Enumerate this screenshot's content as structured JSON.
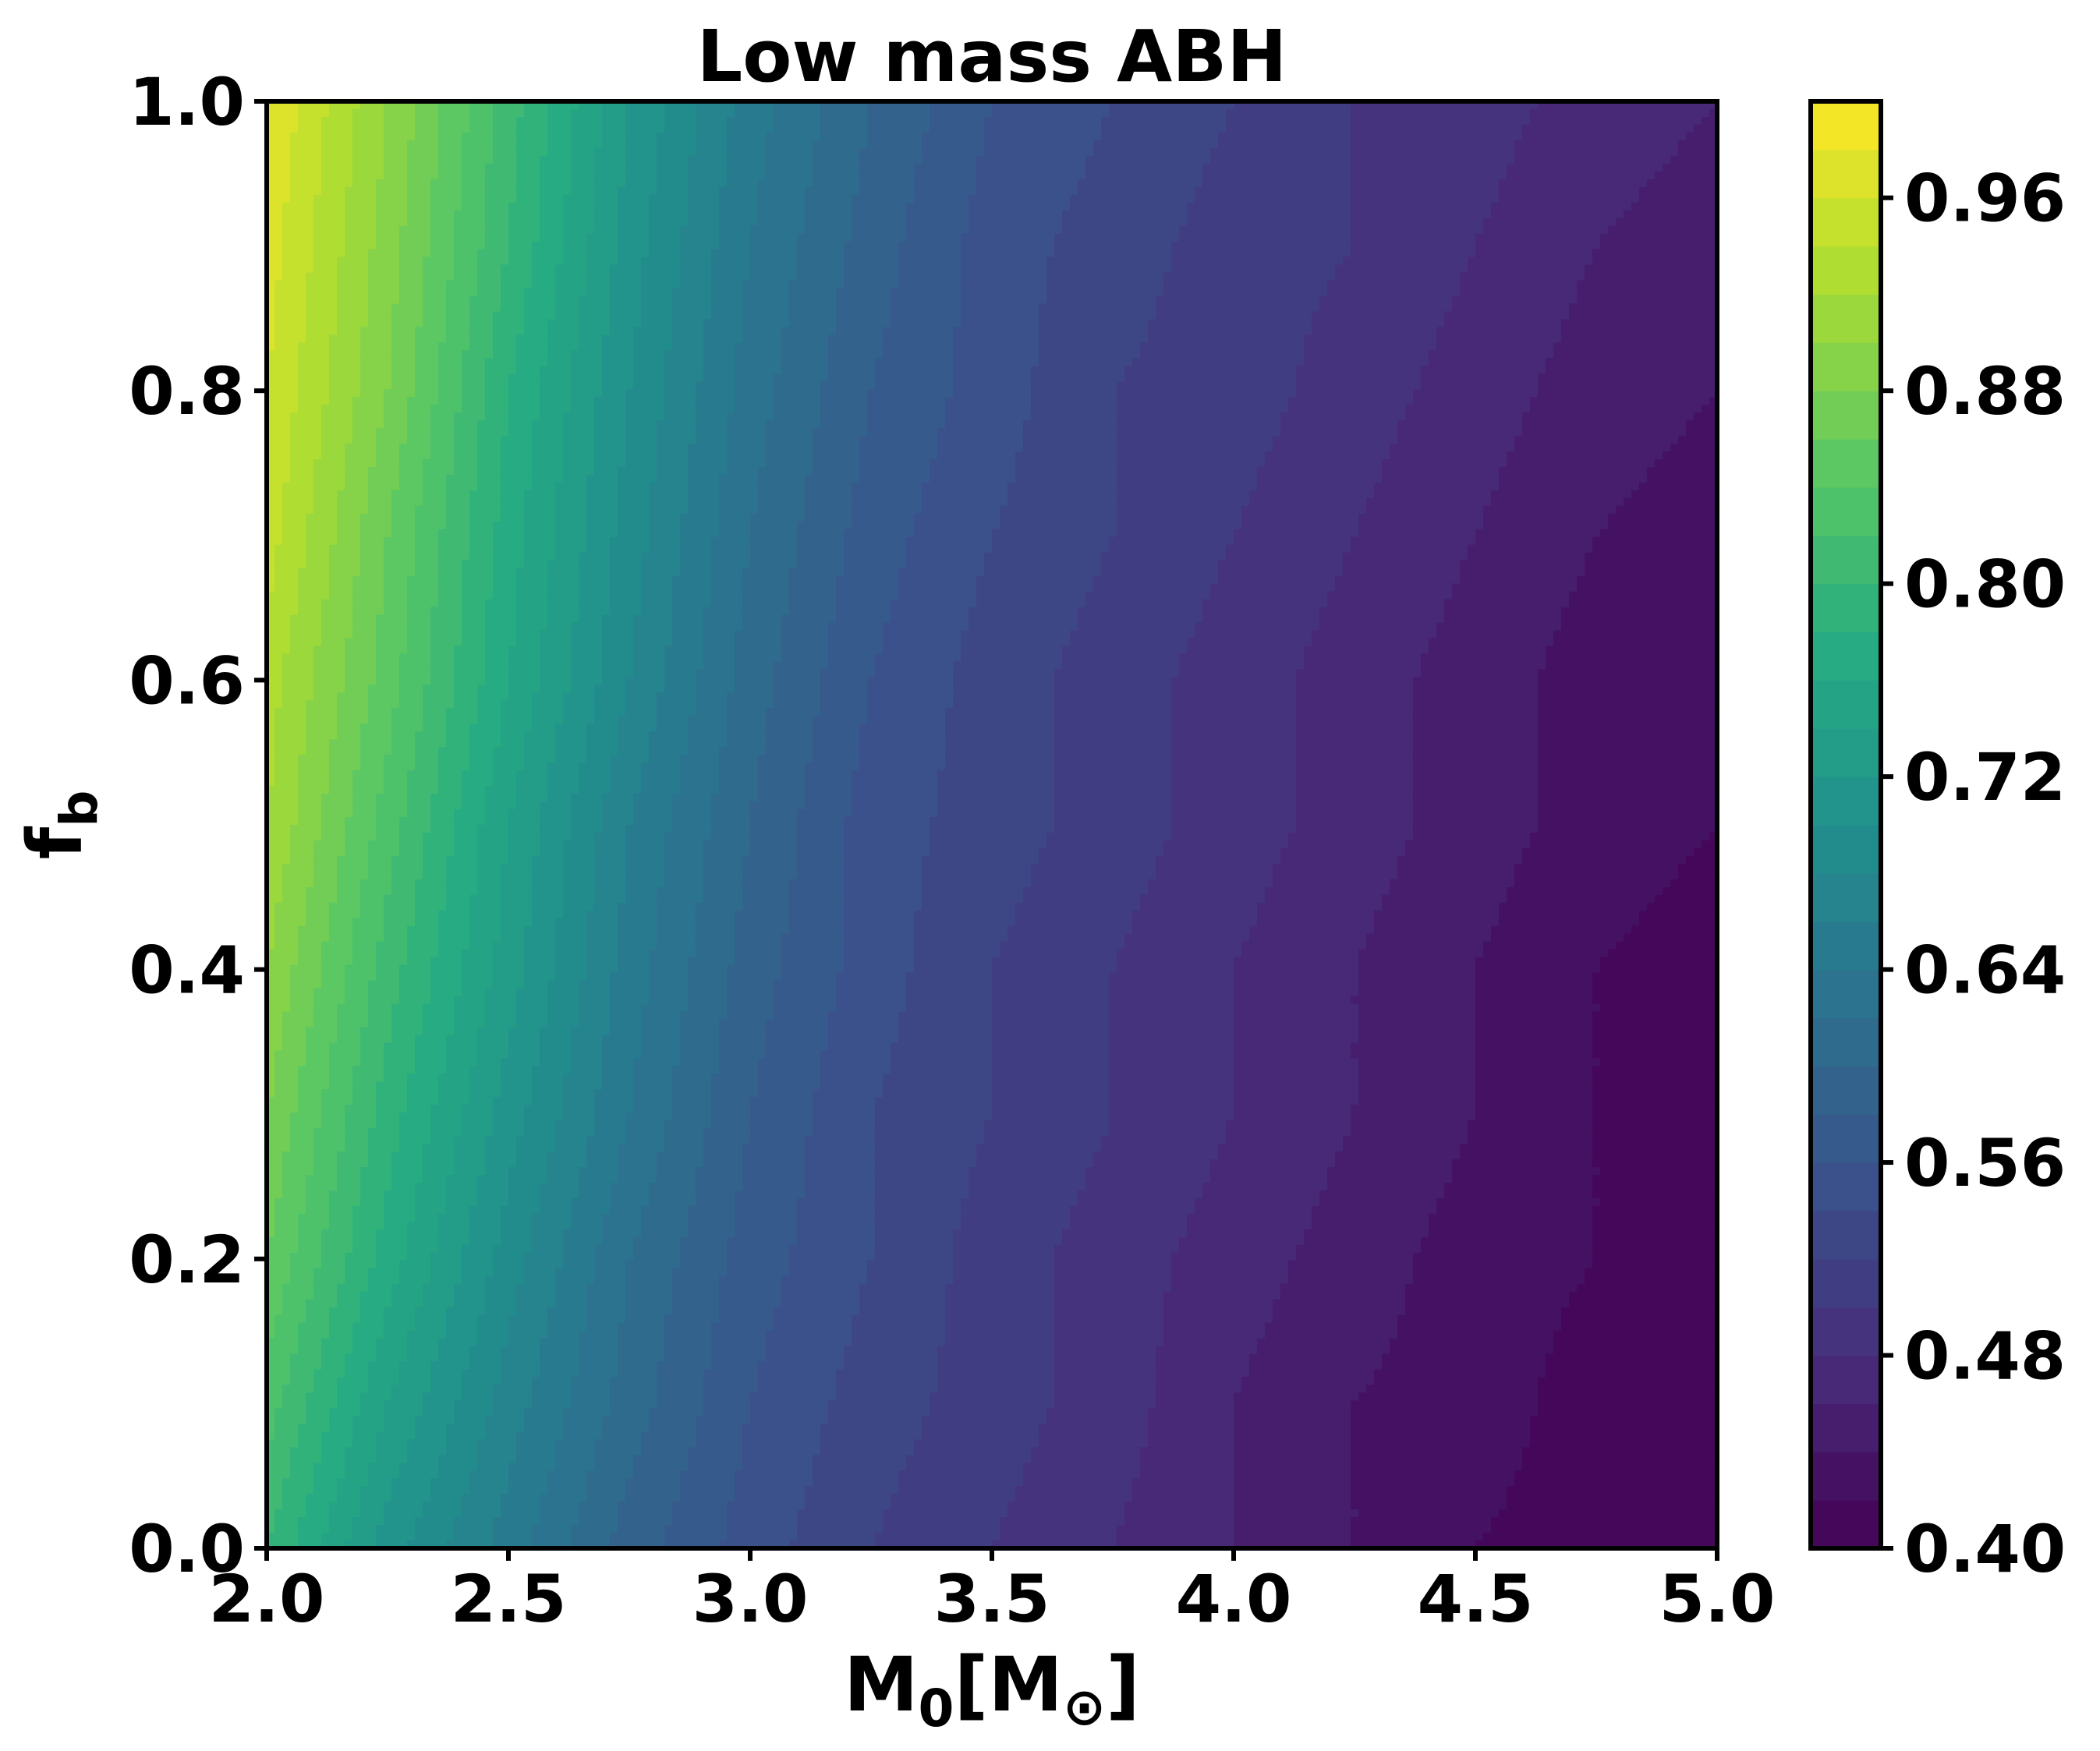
{
  "chart_data": {
    "type": "heatmap",
    "style": "filled-contour",
    "title": "Low mass ABH",
    "xlabel": {
      "main": "M",
      "sub": "0",
      "bracket_open": "[M",
      "sun_symbol": "⊙",
      "bracket_close": "]"
    },
    "ylabel": {
      "main": "f",
      "sub": "b"
    },
    "xlim": [
      2.0,
      5.0
    ],
    "ylim": [
      0.0,
      1.0
    ],
    "x_ticks": [
      "2.0",
      "2.5",
      "3.0",
      "3.5",
      "4.0",
      "4.5",
      "5.0"
    ],
    "y_ticks": [
      "0.0",
      "0.2",
      "0.4",
      "0.6",
      "0.8",
      "1.0"
    ],
    "colorbar": {
      "range": [
        0.4,
        1.0
      ],
      "level_step": 0.02,
      "colormap": "viridis",
      "ticks": [
        "0.40",
        "0.48",
        "0.56",
        "0.64",
        "0.72",
        "0.80",
        "0.88",
        "0.96"
      ]
    },
    "grid": false,
    "x": [
      2.0,
      2.25,
      2.5,
      2.75,
      3.0,
      3.25,
      3.5,
      3.75,
      4.0,
      4.25,
      4.5,
      4.75,
      5.0
    ],
    "y": [
      0.0,
      0.1,
      0.2,
      0.3,
      0.4,
      0.5,
      0.6,
      0.7,
      0.8,
      0.9,
      1.0
    ],
    "z": [
      [
        0.8,
        0.71,
        0.65,
        0.59,
        0.55,
        0.52,
        0.5,
        0.48,
        0.46,
        0.44,
        0.42,
        0.41,
        0.4
      ],
      [
        0.83,
        0.74,
        0.67,
        0.61,
        0.56,
        0.53,
        0.51,
        0.49,
        0.46,
        0.44,
        0.43,
        0.41,
        0.4
      ],
      [
        0.86,
        0.77,
        0.69,
        0.62,
        0.57,
        0.54,
        0.51,
        0.49,
        0.47,
        0.45,
        0.43,
        0.42,
        0.41
      ],
      [
        0.88,
        0.79,
        0.71,
        0.64,
        0.58,
        0.54,
        0.52,
        0.5,
        0.48,
        0.46,
        0.44,
        0.42,
        0.41
      ],
      [
        0.9,
        0.81,
        0.73,
        0.65,
        0.59,
        0.55,
        0.52,
        0.5,
        0.48,
        0.46,
        0.44,
        0.42,
        0.41
      ],
      [
        0.92,
        0.83,
        0.74,
        0.66,
        0.6,
        0.55,
        0.53,
        0.51,
        0.49,
        0.47,
        0.45,
        0.43,
        0.42
      ],
      [
        0.93,
        0.85,
        0.76,
        0.68,
        0.61,
        0.56,
        0.53,
        0.51,
        0.49,
        0.47,
        0.45,
        0.43,
        0.42
      ],
      [
        0.95,
        0.86,
        0.77,
        0.69,
        0.62,
        0.57,
        0.54,
        0.52,
        0.5,
        0.48,
        0.46,
        0.44,
        0.43
      ],
      [
        0.96,
        0.88,
        0.78,
        0.7,
        0.63,
        0.58,
        0.55,
        0.52,
        0.51,
        0.49,
        0.47,
        0.45,
        0.44
      ],
      [
        0.97,
        0.89,
        0.8,
        0.71,
        0.64,
        0.59,
        0.55,
        0.53,
        0.51,
        0.5,
        0.48,
        0.46,
        0.45
      ],
      [
        0.98,
        0.9,
        0.81,
        0.72,
        0.65,
        0.6,
        0.56,
        0.54,
        0.52,
        0.5,
        0.49,
        0.47,
        0.46
      ]
    ]
  }
}
